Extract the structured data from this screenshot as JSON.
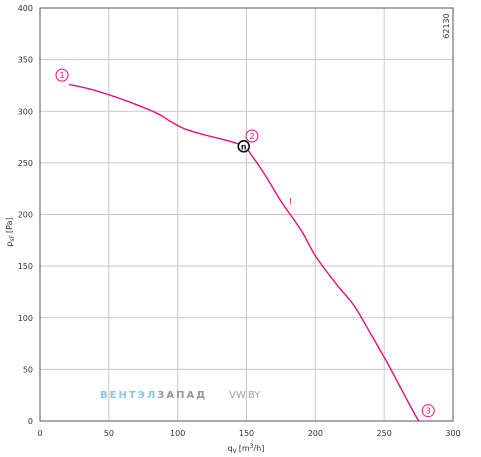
{
  "chart_data": {
    "type": "line",
    "xlabel_main": "q",
    "xlabel_sub": "V",
    "xlabel_unit_pre": "[m",
    "xlabel_unit_sup": "3",
    "xlabel_unit_post": "/h]",
    "ylabel_main": "p",
    "ylabel_sub": "sF",
    "ylabel_unit": "[Pa]",
    "xlim": [
      0,
      300
    ],
    "ylim": [
      0,
      400
    ],
    "x_ticks": [
      0,
      50,
      100,
      150,
      200,
      250,
      300
    ],
    "y_ticks": [
      0,
      50,
      100,
      150,
      200,
      250,
      300,
      350,
      400
    ],
    "grid": true,
    "code": "62130",
    "series": [
      {
        "color": "#e0107f",
        "label": "I",
        "points": [
          [
            21,
            326
          ],
          [
            35,
            322
          ],
          [
            50,
            316
          ],
          [
            65,
            309
          ],
          [
            85,
            298
          ],
          [
            95,
            290
          ],
          [
            105,
            283
          ],
          [
            120,
            277
          ],
          [
            135,
            272
          ],
          [
            148,
            266
          ],
          [
            155,
            255
          ],
          [
            165,
            235
          ],
          [
            175,
            213
          ],
          [
            190,
            184
          ],
          [
            200,
            160
          ],
          [
            215,
            133
          ],
          [
            228,
            112
          ],
          [
            240,
            85
          ],
          [
            252,
            57
          ],
          [
            262,
            32
          ],
          [
            270,
            12
          ],
          [
            275,
            0
          ]
        ]
      }
    ],
    "markers": [
      {
        "label": "1",
        "x": 16,
        "y": 335
      },
      {
        "label": "2",
        "x": 154,
        "y": 276
      },
      {
        "label": "3",
        "x": 282,
        "y": 10
      }
    ],
    "operating_point": {
      "label": "n",
      "x": 148,
      "y": 266
    },
    "watermark": {
      "part1": "ВЕНТЭЛ",
      "part2": "ЗАПАД",
      "part3": "VW.BY"
    }
  }
}
